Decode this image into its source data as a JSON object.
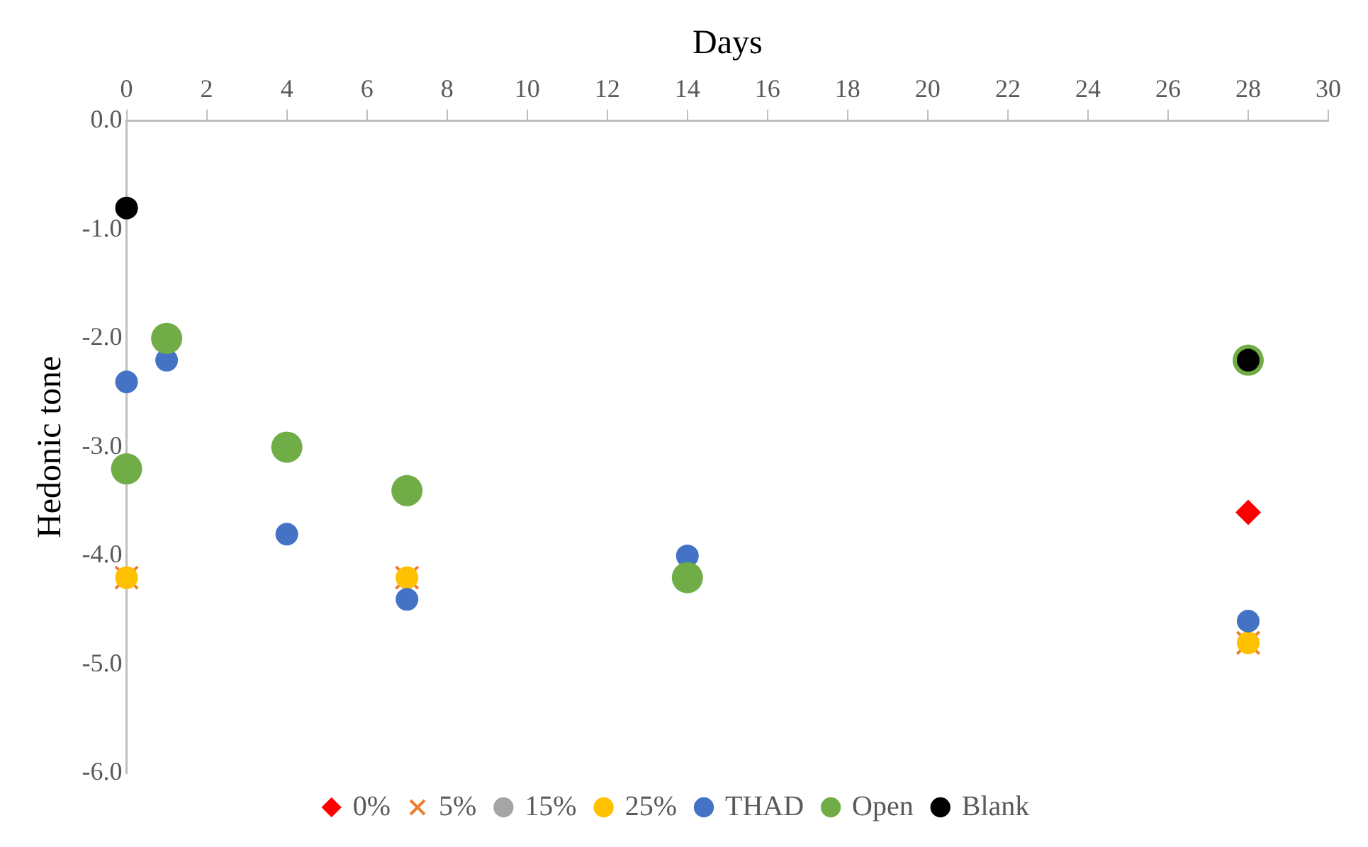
{
  "chart_data": {
    "type": "scatter",
    "xlabel": "Days",
    "ylabel": "Hedonic tone",
    "xlim": [
      0,
      30
    ],
    "xticks": [
      0,
      2,
      4,
      6,
      8,
      10,
      12,
      14,
      16,
      18,
      20,
      22,
      24,
      26,
      28,
      30
    ],
    "ylim": [
      -6,
      0
    ],
    "yticks": [
      {
        "value": -6,
        "label": "-6.0"
      },
      {
        "value": -5,
        "label": "-5.0"
      },
      {
        "value": -4,
        "label": "-4.0"
      },
      {
        "value": -3,
        "label": "-3.0"
      },
      {
        "value": -2,
        "label": "-2.0"
      },
      {
        "value": -1,
        "label": "-1.0"
      },
      {
        "value": 0,
        "label": "0.0"
      }
    ],
    "grid": false,
    "legend": "bottom",
    "series": [
      {
        "name": "0%",
        "color": "#ff0000",
        "marker": "diamond",
        "x": [
          28
        ],
        "values": [
          -3.6
        ]
      },
      {
        "name": "5%",
        "color": "#ed7d31",
        "marker": "cross",
        "x": [
          0,
          7,
          28
        ],
        "values": [
          -4.2,
          -4.2,
          -4.8
        ]
      },
      {
        "name": "15%",
        "color": "#a5a5a5",
        "marker": "circle"
      },
      {
        "name": "25%",
        "color": "#ffc000",
        "marker": "circle",
        "x": [
          0,
          7,
          28
        ],
        "values": [
          -4.2,
          -4.2,
          -4.8
        ]
      },
      {
        "name": "THAD",
        "color": "#4472c4",
        "marker": "circle",
        "x": [
          0,
          1,
          4,
          7,
          14,
          28
        ],
        "values": [
          -2.4,
          -2.2,
          -3.8,
          -4.4,
          -4.0,
          -4.6
        ]
      },
      {
        "name": "Open",
        "color": "#70ad47",
        "marker": "circle",
        "x": [
          0,
          1,
          4,
          7,
          14,
          28
        ],
        "values": [
          -3.2,
          -2.0,
          -3.0,
          -3.4,
          -4.2,
          -2.2
        ]
      },
      {
        "name": "Blank",
        "color": "#000000",
        "marker": "circle",
        "x": [
          0,
          28
        ],
        "values": [
          -0.8,
          -2.2
        ]
      }
    ]
  }
}
